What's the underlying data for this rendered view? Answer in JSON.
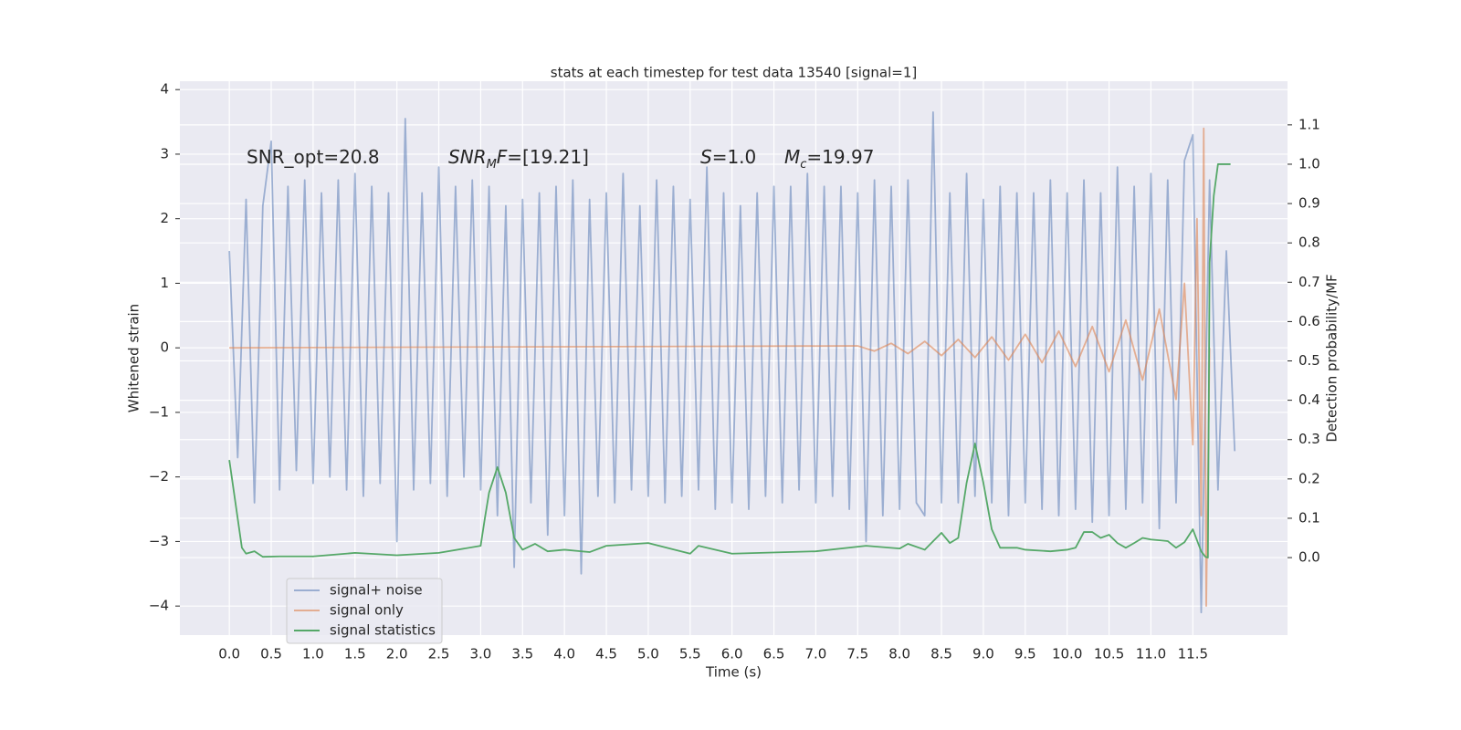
{
  "chart_data": {
    "type": "line",
    "title": "stats at each timestep for test data 13540 [signal=1]",
    "x_label": "Time (s)",
    "y_label": "Whitened strain",
    "y2_label": "Detection probability/MF",
    "xlim": [
      -0.59,
      12.63
    ],
    "ylim": [
      -4.45,
      4.13
    ],
    "y2lim": [
      -0.197,
      1.211
    ],
    "xticks": [
      {
        "value": 0,
        "label": "0.0"
      },
      0.5,
      {
        "value": 1,
        "label": "1.0"
      },
      1.5,
      {
        "value": 2,
        "label": "2.0"
      },
      2.5,
      {
        "value": 3,
        "label": "3.0"
      },
      3.5,
      {
        "value": 4,
        "label": "4.0"
      },
      4.5,
      {
        "value": 5,
        "label": "5.0"
      },
      5.5,
      {
        "value": 6,
        "label": "6.0"
      },
      6.5,
      {
        "value": 7,
        "label": "7.0"
      },
      7.5,
      {
        "value": 8,
        "label": "8.0"
      },
      8.5,
      {
        "value": 9,
        "label": "9.0"
      },
      9.5,
      {
        "value": 10,
        "label": "10.0"
      },
      10.5,
      {
        "value": 11,
        "label": "11.0"
      },
      11.5
    ],
    "yticks": [
      {
        "value": -4,
        "label": "−4"
      },
      {
        "value": -3,
        "label": "−3"
      },
      {
        "value": -2,
        "label": "−2"
      },
      {
        "value": -1,
        "label": "−1"
      },
      0,
      1,
      2,
      3,
      4
    ],
    "y2ticks": [
      {
        "value": 0,
        "label": "0.0"
      },
      0.1,
      0.2,
      0.3,
      0.4,
      0.5,
      0.6,
      0.7,
      0.8,
      0.9,
      {
        "value": 1,
        "label": "1.0"
      },
      1.1
    ],
    "grid": true,
    "legend": "lower left",
    "annotations": [
      {
        "parts": [
          {
            "text": "SNR_opt=20.8"
          }
        ]
      },
      {
        "parts": [
          {
            "text": "SNR",
            "style": "italic"
          },
          {
            "text": "M",
            "style": "italic-sub"
          },
          {
            "text": "F",
            "style": "italic"
          },
          {
            "text": "=[19.21]"
          }
        ]
      },
      {
        "parts": [
          {
            "text": "S",
            "style": "italic"
          },
          {
            "text": "=1.0"
          }
        ]
      },
      {
        "parts": [
          {
            "text": "M",
            "style": "italic"
          },
          {
            "text": "c",
            "style": "italic-sub"
          },
          {
            "text": "=19.97"
          }
        ]
      }
    ],
    "series": [
      {
        "name": "signal+ noise",
        "color": "#4c72b0",
        "opacity": 0.5,
        "x": [
          0,
          0.1,
          0.2,
          0.3,
          0.4,
          0.5,
          0.6,
          0.7,
          0.8,
          0.9,
          1,
          1.1,
          1.2,
          1.3,
          1.4,
          1.5,
          1.6,
          1.7,
          1.8,
          1.9,
          2,
          2.1,
          2.2,
          2.3,
          2.4,
          2.5,
          2.6,
          2.7,
          2.8,
          2.9,
          3,
          3.1,
          3.2,
          3.3,
          3.4,
          3.5,
          3.6,
          3.7,
          3.8,
          3.9,
          4,
          4.1,
          4.2,
          4.3,
          4.4,
          4.5,
          4.6,
          4.7,
          4.8,
          4.9,
          5,
          5.1,
          5.2,
          5.3,
          5.4,
          5.5,
          5.6,
          5.7,
          5.8,
          5.9,
          6,
          6.1,
          6.2,
          6.3,
          6.4,
          6.5,
          6.6,
          6.7,
          6.8,
          6.9,
          7,
          7.1,
          7.2,
          7.3,
          7.4,
          7.5,
          7.6,
          7.7,
          7.8,
          7.9,
          8,
          8.1,
          8.2,
          8.3,
          8.4,
          8.5,
          8.6,
          8.7,
          8.8,
          8.9,
          9,
          9.1,
          9.2,
          9.3,
          9.4,
          9.5,
          9.6,
          9.7,
          9.8,
          9.9,
          10,
          10.1,
          10.2,
          10.3,
          10.4,
          10.5,
          10.6,
          10.7,
          10.8,
          10.9,
          11,
          11.1,
          11.2,
          11.3,
          11.4,
          11.5,
          11.6,
          11.7,
          11.8,
          11.9,
          12
        ],
        "values": [
          1.5,
          -1.7,
          2.3,
          -2.4,
          2.2,
          3.2,
          -2.2,
          2.5,
          -1.9,
          2.6,
          -2.1,
          2.4,
          -2.0,
          2.6,
          -2.2,
          2.7,
          -2.3,
          2.5,
          -2.1,
          2.4,
          -3.0,
          3.55,
          -2.2,
          2.4,
          -2.1,
          2.8,
          -2.3,
          2.5,
          -2.0,
          2.6,
          -2.2,
          2.5,
          -2.6,
          2.2,
          -3.4,
          2.3,
          -2.4,
          2.4,
          -2.9,
          2.5,
          -2.6,
          2.6,
          -3.5,
          2.3,
          -2.3,
          2.4,
          -2.4,
          2.7,
          -2.2,
          2.2,
          -2.3,
          2.6,
          -2.4,
          2.5,
          -2.3,
          2.3,
          -2.2,
          2.8,
          -2.5,
          2.4,
          -2.4,
          2.2,
          -2.5,
          2.4,
          -2.3,
          2.5,
          -2.4,
          2.5,
          -2.2,
          2.7,
          -2.4,
          2.5,
          -2.3,
          2.5,
          -2.5,
          2.4,
          -3.0,
          2.6,
          -2.6,
          2.5,
          -2.5,
          2.6,
          -2.4,
          -2.6,
          3.65,
          -2.4,
          2.4,
          -2.4,
          2.7,
          -2.3,
          2.3,
          -2.4,
          2.5,
          -2.6,
          2.4,
          -2.4,
          2.4,
          -2.5,
          2.6,
          -2.6,
          2.4,
          -2.5,
          2.6,
          -2.7,
          2.4,
          -2.6,
          2.8,
          -2.5,
          2.5,
          -2.4,
          2.7,
          -2.8,
          2.6,
          -2.4,
          2.9,
          3.3,
          -4.1,
          2.6,
          -2.2,
          1.5,
          -1.6
        ]
      },
      {
        "name": "signal only",
        "color": "#dd8452",
        "opacity": 0.6,
        "x": [
          0,
          7.5,
          7.7,
          7.9,
          8.1,
          8.3,
          8.5,
          8.7,
          8.9,
          9.1,
          9.3,
          9.5,
          9.7,
          9.9,
          10.1,
          10.3,
          10.5,
          10.7,
          10.9,
          11.1,
          11.3,
          11.4,
          11.5,
          11.55,
          11.6,
          11.63,
          11.66,
          11.7
        ],
        "values": [
          0,
          0.03,
          -0.05,
          0.07,
          -0.09,
          0.1,
          -0.12,
          0.13,
          -0.15,
          0.17,
          -0.19,
          0.21,
          -0.23,
          0.26,
          -0.29,
          0.33,
          -0.37,
          0.43,
          -0.5,
          0.6,
          -0.8,
          1.0,
          -1.5,
          2.0,
          -2.6,
          3.4,
          -4.0,
          0
        ]
      },
      {
        "name": "signal statistics",
        "color": "#55a868",
        "opacity": 1,
        "axis": "y2",
        "x": [
          0,
          0.15,
          0.2,
          0.3,
          0.4,
          0.6,
          1,
          1.5,
          2,
          2.5,
          3,
          3.05,
          3.1,
          3.2,
          3.3,
          3.4,
          3.5,
          3.65,
          3.8,
          4,
          4.3,
          4.5,
          5,
          5.5,
          5.6,
          6,
          7,
          7.6,
          8,
          8.1,
          8.3,
          8.5,
          8.6,
          8.7,
          8.8,
          8.9,
          9,
          9.1,
          9.2,
          9.4,
          9.5,
          9.8,
          10,
          10.1,
          10.2,
          10.3,
          10.4,
          10.5,
          10.6,
          10.7,
          10.8,
          10.9,
          11,
          11.2,
          11.3,
          11.4,
          11.5,
          11.6,
          11.65,
          11.68,
          11.7,
          11.75,
          11.8,
          11.9,
          11.95
        ],
        "values": [
          0.248,
          0.025,
          0.01,
          0.016,
          0.002,
          0.003,
          0.003,
          0.012,
          0.006,
          0.012,
          0.03,
          0.1,
          0.165,
          0.23,
          0.165,
          0.05,
          0.02,
          0.035,
          0.016,
          0.02,
          0.014,
          0.03,
          0.037,
          0.01,
          0.03,
          0.01,
          0.016,
          0.03,
          0.023,
          0.035,
          0.02,
          0.063,
          0.037,
          0.05,
          0.19,
          0.29,
          0.19,
          0.072,
          0.025,
          0.025,
          0.02,
          0.016,
          0.02,
          0.025,
          0.065,
          0.065,
          0.05,
          0.058,
          0.037,
          0.025,
          0.037,
          0.05,
          0.046,
          0.042,
          0.025,
          0.039,
          0.072,
          0.016,
          0.002,
          0.0,
          0.75,
          0.92,
          1.0,
          1.0,
          1.0
        ]
      }
    ]
  }
}
